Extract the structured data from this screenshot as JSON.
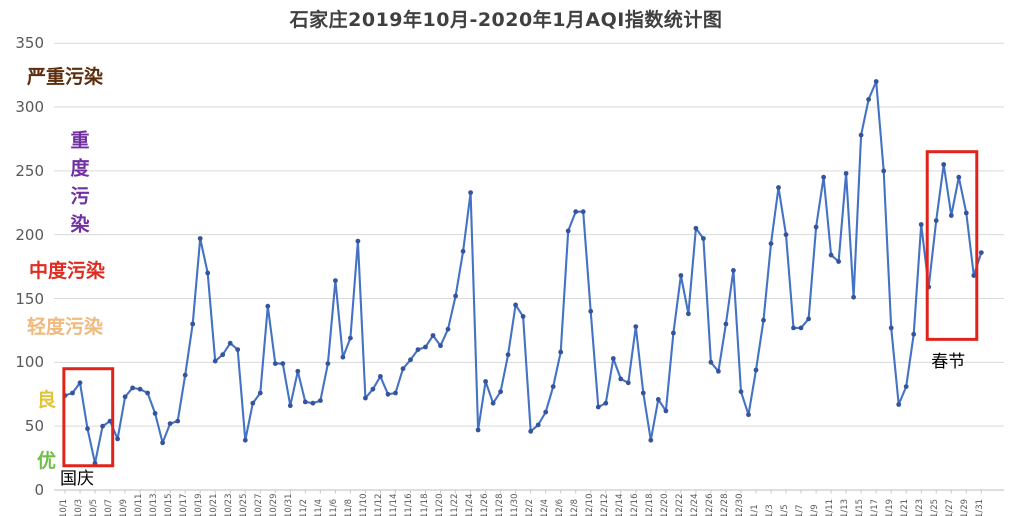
{
  "chart_data": {
    "type": "line",
    "title": "石家庄2019年10月-2020年1月AQI指数统计图",
    "xlabel": "",
    "ylabel": "",
    "ylim": [
      0,
      350
    ],
    "yticks": [
      0,
      50,
      100,
      150,
      200,
      250,
      300,
      350
    ],
    "grid": "horizontal",
    "x_tick_every": 2,
    "line_color": "#4472c4",
    "marker_color": "#35549c",
    "grid_color": "#d9d9d9",
    "axis_color": "#c9c9c9",
    "tick_text_color": "#595959",
    "title_color": "#404040",
    "x": [
      "10/1",
      "10/2",
      "10/3",
      "10/4",
      "10/5",
      "10/6",
      "10/7",
      "10/8",
      "10/9",
      "10/10",
      "10/11",
      "10/12",
      "10/13",
      "10/14",
      "10/15",
      "10/16",
      "10/17",
      "10/18",
      "10/19",
      "10/20",
      "10/21",
      "10/22",
      "10/23",
      "10/24",
      "10/25",
      "10/26",
      "10/27",
      "10/28",
      "10/29",
      "10/30",
      "10/31",
      "11/1",
      "11/2",
      "11/3",
      "11/4",
      "11/5",
      "11/6",
      "11/7",
      "11/8",
      "11/9",
      "11/10",
      "11/11",
      "11/12",
      "11/13",
      "11/14",
      "11/15",
      "11/16",
      "11/17",
      "11/18",
      "11/19",
      "11/20",
      "11/21",
      "11/22",
      "11/23",
      "11/24",
      "11/25",
      "11/26",
      "11/27",
      "11/28",
      "11/29",
      "11/30",
      "12/1",
      "12/2",
      "12/3",
      "12/4",
      "12/5",
      "12/6",
      "12/7",
      "12/8",
      "12/9",
      "12/10",
      "12/11",
      "12/12",
      "12/13",
      "12/14",
      "12/15",
      "12/16",
      "12/17",
      "12/18",
      "12/19",
      "12/20",
      "12/21",
      "12/22",
      "12/23",
      "12/24",
      "12/25",
      "12/26",
      "12/27",
      "12/28",
      "12/29",
      "12/30",
      "12/31",
      "1/1",
      "1/2",
      "1/3",
      "1/4",
      "1/5",
      "1/6",
      "1/7",
      "1/8",
      "1/9",
      "1/10",
      "1/11",
      "1/12",
      "1/13",
      "1/14",
      "1/15",
      "1/16",
      "1/17",
      "1/18",
      "1/19",
      "1/20",
      "1/21",
      "1/22",
      "1/23",
      "1/24",
      "1/25",
      "1/26",
      "1/27",
      "1/28",
      "1/29",
      "1/30",
      "1/31"
    ],
    "values": [
      74,
      76,
      84,
      48,
      21,
      50,
      54,
      40,
      73,
      80,
      79,
      76,
      60,
      37,
      52,
      54,
      90,
      130,
      197,
      170,
      101,
      106,
      115,
      110,
      39,
      68,
      76,
      144,
      99,
      99,
      66,
      93,
      69,
      68,
      70,
      99,
      164,
      104,
      119,
      195,
      72,
      79,
      89,
      75,
      76,
      95,
      102,
      110,
      112,
      121,
      113,
      126,
      152,
      187,
      233,
      47,
      85,
      68,
      77,
      106,
      145,
      136,
      46,
      51,
      61,
      81,
      108,
      203,
      218,
      218,
      140,
      65,
      68,
      103,
      87,
      84,
      128,
      76,
      39,
      71,
      62,
      123,
      168,
      138,
      205,
      197,
      100,
      93,
      130,
      172,
      77,
      59,
      94,
      133,
      193,
      237,
      200,
      127,
      127,
      134,
      206,
      245,
      184,
      179,
      248,
      151,
      278,
      306,
      320,
      250,
      127,
      67,
      81,
      122,
      208,
      159,
      211,
      255,
      215,
      245,
      217,
      168,
      186
    ],
    "category_labels": [
      {
        "text": "严重污染",
        "color": "#5c2e0e",
        "value": 323,
        "x": 27,
        "vertical": false,
        "size": 19
      },
      {
        "text": "重度污染",
        "color": "#7030a0",
        "value": 241,
        "x": 68,
        "vertical": true,
        "size": 19
      },
      {
        "text": "中度污染",
        "color": "#e02b20",
        "value": 171,
        "x": 29,
        "vertical": false,
        "size": 19
      },
      {
        "text": "轻度污染",
        "color": "#f0b97d",
        "value": 127,
        "x": 27,
        "vertical": false,
        "size": 19
      },
      {
        "text": "良",
        "color": "#e2c439",
        "value": 70,
        "x": 37,
        "vertical": false,
        "size": 19
      },
      {
        "text": "优",
        "color": "#70bf46",
        "value": 22,
        "x": 37,
        "vertical": false,
        "size": 19
      }
    ],
    "annotations": [
      {
        "label": "国庆",
        "box_color": "#e0241b",
        "day_start": -0.15,
        "day_end": 6.35,
        "v_min": 19,
        "v_max": 95,
        "label_day": 1.6,
        "label_v": 9
      },
      {
        "label": "春节",
        "box_color": "#e0241b",
        "day_start": 114.8,
        "day_end": 121.4,
        "v_min": 118,
        "v_max": 265,
        "label_day": 117.6,
        "label_v": 100
      }
    ]
  }
}
